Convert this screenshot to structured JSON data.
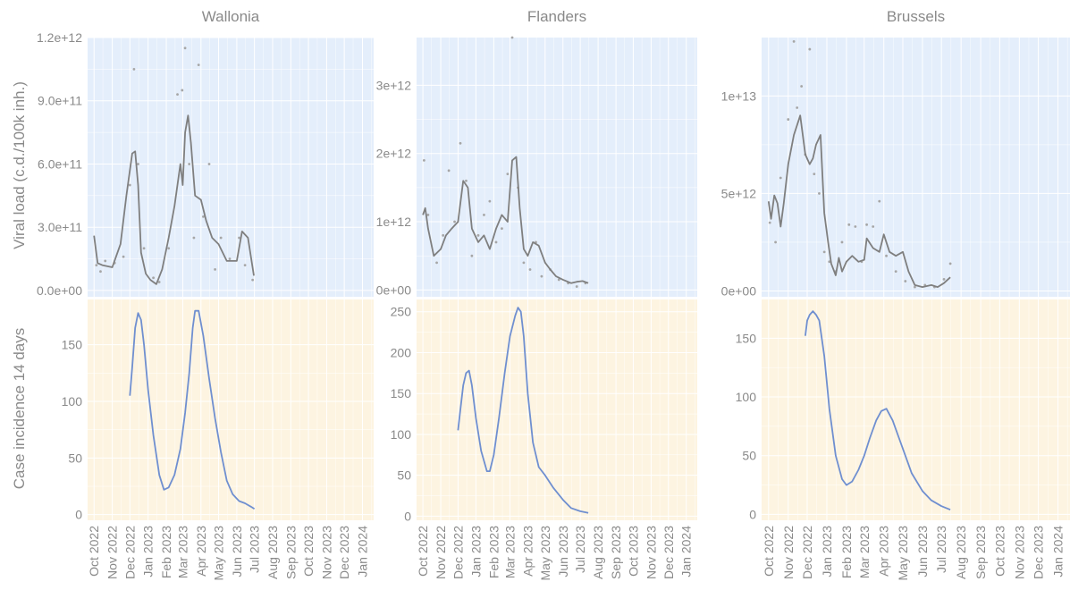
{
  "y_labels": {
    "top": "Viral load (c.d./100k inh.)",
    "bottom": "Case incidence 14 days"
  },
  "colors": {
    "viral_bg": "#e4eefb",
    "case_bg": "#fdf4e1",
    "grid": "#ffffff",
    "text": "#8a8a8a",
    "viral_line": "#7f7f7f",
    "viral_points": "#a6a6a6",
    "case_line": "#6f8fd0"
  },
  "x_ticks": [
    "Oct 2022",
    "Nov 2022",
    "Dec 2022",
    "Jan 2023",
    "Feb 2023",
    "Mar 2023",
    "Apr 2023",
    "May 2023",
    "Jun 2023",
    "Jul 2023",
    "Aug 2023",
    "Sep 2023",
    "Oct 2023",
    "Nov 2023",
    "Dec 2023",
    "Jan 2024"
  ],
  "chart_data": [
    {
      "type": "line",
      "region": "Wallonia",
      "title": "Wallonia",
      "viral_load": {
        "ylabel": "Viral load (c.d./100k inh.)",
        "ylim": [
          -30000000000.0,
          1200000000000.0
        ],
        "yticks": [
          0,
          300000000000.0,
          600000000000.0,
          900000000000.0,
          1200000000000.0
        ],
        "ytick_labels": [
          "0.0e+00",
          "3.0e+11",
          "6.0e+11",
          "9.0e+11",
          "1.2e+12"
        ],
        "smooth": {
          "x": [
            "2022-10-01",
            "2022-10-07",
            "2022-10-15",
            "2022-11-01",
            "2022-11-15",
            "2022-11-25",
            "2022-12-05",
            "2022-12-10",
            "2022-12-15",
            "2022-12-20",
            "2022-12-28",
            "2023-01-05",
            "2023-01-15",
            "2023-01-25",
            "2023-02-05",
            "2023-02-15",
            "2023-02-25",
            "2023-03-01",
            "2023-03-05",
            "2023-03-10",
            "2023-03-15",
            "2023-03-22",
            "2023-04-01",
            "2023-04-10",
            "2023-04-20",
            "2023-05-01",
            "2023-05-15",
            "2023-06-01",
            "2023-06-10",
            "2023-06-20",
            "2023-06-30"
          ],
          "y": [
            260000000000.0,
            130000000000.0,
            120000000000.0,
            110000000000.0,
            220000000000.0,
            450000000000.0,
            650000000000.0,
            660000000000.0,
            500000000000.0,
            180000000000.0,
            80000000000.0,
            50000000000.0,
            30000000000.0,
            100000000000.0,
            250000000000.0,
            400000000000.0,
            600000000000.0,
            500000000000.0,
            750000000000.0,
            830000000000.0,
            700000000000.0,
            450000000000.0,
            430000000000.0,
            330000000000.0,
            250000000000.0,
            220000000000.0,
            140000000000.0,
            140000000000.0,
            280000000000.0,
            250000000000.0,
            70000000000.0
          ]
        },
        "points": {
          "x": [
            "2022-10-05",
            "2022-10-12",
            "2022-10-20",
            "2022-11-05",
            "2022-11-20",
            "2022-12-01",
            "2022-12-08",
            "2022-12-15",
            "2022-12-25",
            "2023-01-10",
            "2023-01-20",
            "2023-02-05",
            "2023-02-20",
            "2023-02-28",
            "2023-03-05",
            "2023-03-12",
            "2023-03-20",
            "2023-03-28",
            "2023-04-05",
            "2023-04-15",
            "2023-04-25",
            "2023-05-05",
            "2023-05-20",
            "2023-06-05",
            "2023-06-15",
            "2023-06-28"
          ],
          "y": [
            120000000000.0,
            90000000000.0,
            140000000000.0,
            130000000000.0,
            160000000000.0,
            500000000000.0,
            1050000000000.0,
            600000000000.0,
            200000000000.0,
            60000000000.0,
            40000000000.0,
            200000000000.0,
            930000000000.0,
            950000000000.0,
            1150000000000.0,
            600000000000.0,
            250000000000.0,
            1070000000000.0,
            350000000000.0,
            600000000000.0,
            100000000000.0,
            250000000000.0,
            150000000000.0,
            250000000000.0,
            120000000000.0,
            50000000000.0
          ]
        }
      },
      "case_incidence": {
        "ylabel": "Case incidence 14 days",
        "ylim": [
          -5,
          190
        ],
        "yticks": [
          0,
          50,
          100,
          150
        ],
        "x": [
          "2022-12-01",
          "2022-12-05",
          "2022-12-10",
          "2022-12-15",
          "2022-12-20",
          "2022-12-25",
          "2023-01-01",
          "2023-01-10",
          "2023-01-20",
          "2023-01-28",
          "2023-02-05",
          "2023-02-15",
          "2023-02-25",
          "2023-03-05",
          "2023-03-12",
          "2023-03-18",
          "2023-03-22",
          "2023-03-28",
          "2023-04-05",
          "2023-04-15",
          "2023-04-25",
          "2023-05-05",
          "2023-05-15",
          "2023-05-25",
          "2023-06-05",
          "2023-06-15",
          "2023-06-25",
          "2023-07-01"
        ],
        "y": [
          105,
          130,
          165,
          178,
          172,
          150,
          110,
          70,
          35,
          22,
          24,
          35,
          58,
          90,
          125,
          165,
          180,
          180,
          158,
          120,
          85,
          55,
          30,
          18,
          12,
          10,
          7,
          5
        ]
      }
    },
    {
      "type": "line",
      "region": "Flanders",
      "title": "Flanders",
      "viral_load": {
        "ylim": [
          -100000000000.0,
          3700000000000.0
        ],
        "yticks": [
          0,
          1000000000000.0,
          2000000000000.0,
          3000000000000.0
        ],
        "ytick_labels": [
          "0e+00",
          "1e+12",
          "2e+12",
          "3e+12"
        ],
        "smooth": {
          "x": [
            "2022-10-01",
            "2022-10-05",
            "2022-10-10",
            "2022-10-20",
            "2022-11-01",
            "2022-11-10",
            "2022-11-20",
            "2022-12-01",
            "2022-12-10",
            "2022-12-18",
            "2022-12-25",
            "2023-01-05",
            "2023-01-15",
            "2023-01-25",
            "2023-02-05",
            "2023-02-15",
            "2023-02-25",
            "2023-03-05",
            "2023-03-12",
            "2023-03-18",
            "2023-03-25",
            "2023-04-01",
            "2023-04-10",
            "2023-04-20",
            "2023-05-01",
            "2023-05-10",
            "2023-05-20",
            "2023-06-01",
            "2023-06-15",
            "2023-06-25",
            "2023-07-05",
            "2023-07-15"
          ],
          "y": [
            1100000000000.0,
            1200000000000.0,
            900000000000.0,
            500000000000.0,
            600000000000.0,
            800000000000.0,
            900000000000.0,
            1000000000000.0,
            1600000000000.0,
            1500000000000.0,
            900000000000.0,
            700000000000.0,
            800000000000.0,
            600000000000.0,
            900000000000.0,
            1100000000000.0,
            1000000000000.0,
            1900000000000.0,
            1950000000000.0,
            1200000000000.0,
            600000000000.0,
            500000000000.0,
            700000000000.0,
            650000000000.0,
            400000000000.0,
            300000000000.0,
            200000000000.0,
            150000000000.0,
            100000000000.0,
            120000000000.0,
            130000000000.0,
            100000000000.0
          ]
        },
        "points": {
          "x": [
            "2022-10-03",
            "2022-10-10",
            "2022-10-25",
            "2022-11-05",
            "2022-11-15",
            "2022-11-25",
            "2022-12-05",
            "2022-12-15",
            "2022-12-25",
            "2023-01-05",
            "2023-01-15",
            "2023-01-25",
            "2023-02-05",
            "2023-02-15",
            "2023-02-25",
            "2023-03-05",
            "2023-03-15",
            "2023-03-25",
            "2023-04-05",
            "2023-04-15",
            "2023-04-25",
            "2023-05-10",
            "2023-05-25",
            "2023-06-10",
            "2023-06-25",
            "2023-07-10"
          ],
          "y": [
            1900000000000.0,
            1100000000000.0,
            400000000000.0,
            800000000000.0,
            1750000000000.0,
            1000000000000.0,
            2150000000000.0,
            1600000000000.0,
            500000000000.0,
            800000000000.0,
            1100000000000.0,
            1300000000000.0,
            700000000000.0,
            900000000000.0,
            1700000000000.0,
            3700000000000.0,
            1500000000000.0,
            400000000000.0,
            300000000000.0,
            700000000000.0,
            200000000000.0,
            300000000000.0,
            150000000000.0,
            100000000000.0,
            50000000000.0,
            100000000000.0
          ]
        }
      },
      "case_incidence": {
        "ylim": [
          -5,
          265
        ],
        "yticks": [
          0,
          50,
          100,
          150,
          200,
          250
        ],
        "x": [
          "2022-12-01",
          "2022-12-05",
          "2022-12-10",
          "2022-12-15",
          "2022-12-20",
          "2022-12-25",
          "2023-01-01",
          "2023-01-10",
          "2023-01-20",
          "2023-01-25",
          "2023-02-01",
          "2023-02-10",
          "2023-02-20",
          "2023-03-01",
          "2023-03-10",
          "2023-03-15",
          "2023-03-20",
          "2023-03-25",
          "2023-04-01",
          "2023-04-10",
          "2023-04-20",
          "2023-05-01",
          "2023-05-15",
          "2023-06-01",
          "2023-06-15",
          "2023-07-01",
          "2023-07-15"
        ],
        "y": [
          105,
          130,
          160,
          175,
          178,
          160,
          120,
          80,
          55,
          55,
          75,
          120,
          175,
          220,
          245,
          255,
          250,
          220,
          150,
          90,
          60,
          50,
          35,
          20,
          10,
          6,
          4
        ]
      }
    },
    {
      "type": "line",
      "region": "Brussels",
      "title": "Brussels",
      "viral_load": {
        "ylim": [
          -300000000000.0,
          13000000000000.0
        ],
        "yticks": [
          0,
          5000000000000.0,
          10000000000000.0
        ],
        "ytick_labels": [
          "0e+00",
          "5e+12",
          "1e+13"
        ],
        "smooth": {
          "x": [
            "2022-10-01",
            "2022-10-05",
            "2022-10-10",
            "2022-10-15",
            "2022-10-20",
            "2022-10-25",
            "2022-11-01",
            "2022-11-10",
            "2022-11-20",
            "2022-11-28",
            "2022-12-05",
            "2022-12-10",
            "2022-12-15",
            "2022-12-22",
            "2022-12-28",
            "2023-01-03",
            "2023-01-08",
            "2023-01-15",
            "2023-01-20",
            "2023-01-25",
            "2023-02-01",
            "2023-02-10",
            "2023-02-20",
            "2023-03-01",
            "2023-03-05",
            "2023-03-15",
            "2023-03-25",
            "2023-04-01",
            "2023-04-10",
            "2023-04-20",
            "2023-05-01",
            "2023-05-10",
            "2023-05-20",
            "2023-06-01",
            "2023-06-15",
            "2023-06-25",
            "2023-07-05",
            "2023-07-15"
          ],
          "y": [
            4600000000000.0,
            3700000000000.0,
            4900000000000.0,
            4500000000000.0,
            3300000000000.0,
            4500000000000.0,
            6500000000000.0,
            8000000000000.0,
            9000000000000.0,
            7000000000000.0,
            6500000000000.0,
            6800000000000.0,
            7500000000000.0,
            8000000000000.0,
            4000000000000.0,
            2500000000000.0,
            1400000000000.0,
            800000000000.0,
            1700000000000.0,
            1000000000000.0,
            1500000000000.0,
            1800000000000.0,
            1500000000000.0,
            1600000000000.0,
            2700000000000.0,
            2200000000000.0,
            2000000000000.0,
            2900000000000.0,
            2000000000000.0,
            1800000000000.0,
            2000000000000.0,
            1000000000000.0,
            300000000000.0,
            200000000000.0,
            300000000000.0,
            200000000000.0,
            400000000000.0,
            700000000000.0
          ]
        },
        "points": {
          "x": [
            "2022-10-03",
            "2022-10-12",
            "2022-10-20",
            "2022-11-01",
            "2022-11-10",
            "2022-11-15",
            "2022-11-22",
            "2022-11-28",
            "2022-12-05",
            "2022-12-12",
            "2022-12-20",
            "2022-12-28",
            "2023-01-05",
            "2023-01-15",
            "2023-01-25",
            "2023-02-05",
            "2023-02-15",
            "2023-02-25",
            "2023-03-05",
            "2023-03-15",
            "2023-03-25",
            "2023-04-05",
            "2023-04-20",
            "2023-05-05",
            "2023-05-20",
            "2023-06-05",
            "2023-06-20",
            "2023-07-05",
            "2023-07-15"
          ],
          "y": [
            3500000000000.0,
            2500000000000.0,
            5800000000000.0,
            8800000000000.0,
            12800000000000.0,
            9400000000000.0,
            10500000000000.0,
            7000000000000.0,
            12400000000000.0,
            6000000000000.0,
            5000000000000.0,
            2000000000000.0,
            1500000000000.0,
            1000000000000.0,
            2500000000000.0,
            3400000000000.0,
            3300000000000.0,
            1500000000000.0,
            3400000000000.0,
            3300000000000.0,
            4600000000000.0,
            1800000000000.0,
            1000000000000.0,
            500000000000.0,
            200000000000.0,
            300000000000.0,
            200000000000.0,
            600000000000.0,
            1400000000000.0
          ]
        }
      },
      "case_incidence": {
        "ylim": [
          -5,
          183
        ],
        "yticks": [
          0,
          50,
          100,
          150
        ],
        "x": [
          "2022-11-28",
          "2022-12-01",
          "2022-12-05",
          "2022-12-10",
          "2022-12-15",
          "2022-12-20",
          "2022-12-28",
          "2023-01-05",
          "2023-01-15",
          "2023-01-25",
          "2023-02-01",
          "2023-02-10",
          "2023-02-20",
          "2023-03-01",
          "2023-03-10",
          "2023-03-20",
          "2023-03-28",
          "2023-04-05",
          "2023-04-15",
          "2023-04-25",
          "2023-05-05",
          "2023-05-15",
          "2023-06-01",
          "2023-06-15",
          "2023-07-01",
          "2023-07-15"
        ],
        "y": [
          152,
          165,
          170,
          173,
          170,
          165,
          135,
          90,
          50,
          30,
          25,
          28,
          38,
          50,
          65,
          80,
          88,
          90,
          80,
          65,
          50,
          35,
          20,
          12,
          7,
          4
        ]
      }
    }
  ]
}
